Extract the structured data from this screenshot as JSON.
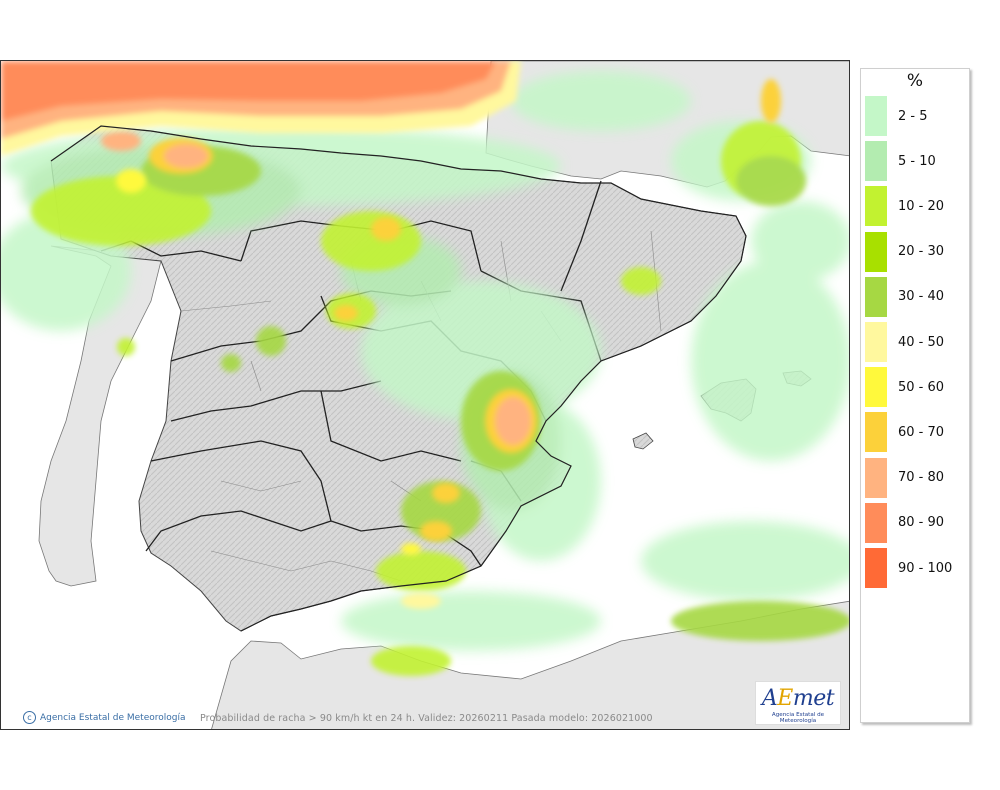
{
  "map": {
    "credit": "Agencia Estatal de Meteorología",
    "caption": "Probabilidad de racha > 90 km/h kt en 24 h. Validez: 20260211 Pasada modelo: 2026021000",
    "logo": {
      "word_a": "A",
      "word_e": "E",
      "word_rest": "met",
      "subtitle": "Agencia Estatal de Meteorología"
    }
  },
  "legend": {
    "unit": "%",
    "items": [
      {
        "label": "2 - 5",
        "color": "#c4f7c8"
      },
      {
        "label": "5 - 10",
        "color": "#b3ecb0"
      },
      {
        "label": "10 - 20",
        "color": "#c2f230"
      },
      {
        "label": "20 - 30",
        "color": "#a8e000"
      },
      {
        "label": "30 - 40",
        "color": "#a6d843"
      },
      {
        "label": "40 - 50",
        "color": "#fff89e"
      },
      {
        "label": "50 - 60",
        "color": "#fff93c"
      },
      {
        "label": "60 - 70",
        "color": "#fcd13a"
      },
      {
        "label": "70 - 80",
        "color": "#ffb380"
      },
      {
        "label": "80 - 90",
        "color": "#ff8c5a"
      },
      {
        "label": "90 - 100",
        "color": "#ff6a36"
      }
    ]
  }
}
